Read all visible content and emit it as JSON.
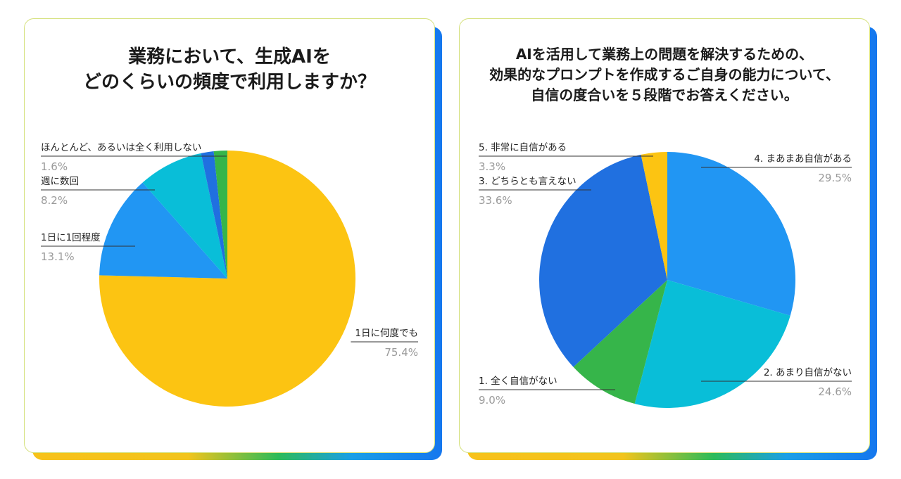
{
  "colors": {
    "yellow": "#fcc412",
    "blue": "#2196f3",
    "cyan": "#09bed8",
    "dark_blue": "#2070e0",
    "green": "#36b54a",
    "label_text": "#222222",
    "percent_text": "#9a9a9a",
    "leader_line": "#333333"
  },
  "chart_data": [
    {
      "type": "pie",
      "title": "業務において、生成AIを\nどのくらいの頻度で利用しますか？",
      "start_angle_deg": 0,
      "direction": "clockwise",
      "slices": [
        {
          "label": "1日に何度でも",
          "value": 75.4,
          "display": "75.4%",
          "color": "#fcc412"
        },
        {
          "label": "1日に1回程度",
          "value": 13.1,
          "display": "13.1%",
          "color": "#2196f3"
        },
        {
          "label": "週に数回",
          "value": 8.2,
          "display": "8.2%",
          "color": "#09bed8"
        },
        {
          "label": "ほんとんど、あるいは全く利用しない",
          "value": 1.6,
          "display": "1.6%",
          "color": "#2070e0"
        },
        {
          "label": "",
          "value": 1.7,
          "display": "",
          "color": "#36b54a"
        }
      ]
    },
    {
      "type": "pie",
      "title": "AIを活用して業務上の問題を解決するための、\n効果的なプロンプトを作成するご自身の能力について、\n自信の度合いを５段階でお答えください。",
      "start_angle_deg": 0,
      "direction": "clockwise",
      "slices": [
        {
          "label": "4. まあまあ自信がある",
          "value": 29.5,
          "display": "29.5%",
          "color": "#2196f3"
        },
        {
          "label": "2. あまり自信がない",
          "value": 24.6,
          "display": "24.6%",
          "color": "#09bed8"
        },
        {
          "label": "1. 全く自信がない",
          "value": 9.0,
          "display": "9.0%",
          "color": "#36b54a"
        },
        {
          "label": "3. どちらとも言えない",
          "value": 33.6,
          "display": "33.6%",
          "color": "#2070e0"
        },
        {
          "label": "5. 非常に自信がある",
          "value": 3.3,
          "display": "3.3%",
          "color": "#fcc412"
        }
      ]
    }
  ]
}
